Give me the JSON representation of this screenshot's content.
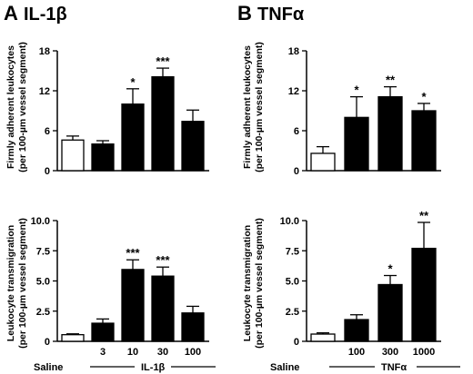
{
  "panels": [
    {
      "letter": "A",
      "title": "IL-1β",
      "group_label_left": "Saline",
      "group_label_right": "IL-1β",
      "categories": [
        "",
        "3",
        "10",
        "30",
        "100"
      ],
      "fills": [
        "#ffffff",
        "#000000",
        "#000000",
        "#000000",
        "#000000"
      ]
    },
    {
      "letter": "B",
      "title": "TNFα",
      "group_label_left": "Saline",
      "group_label_right": "TNFα",
      "categories": [
        "",
        "100",
        "300",
        "1000"
      ],
      "fills": [
        "#ffffff",
        "#000000",
        "#000000",
        "#000000"
      ]
    }
  ],
  "chart_data": [
    {
      "type": "bar",
      "panel": "A",
      "row": "top",
      "title": "IL-1β",
      "ylabel_line1": "Firmly adherent leukocytes",
      "ylabel_line2": "(per 100-µm vessel segment)",
      "categories": [
        "Saline",
        "3",
        "10",
        "30",
        "100"
      ],
      "values": [
        4.6,
        4.0,
        10.0,
        14.1,
        7.4
      ],
      "errors": [
        0.6,
        0.5,
        2.3,
        1.3,
        1.7
      ],
      "significance": [
        "",
        "",
        "*",
        "***",
        ""
      ],
      "ylim": [
        0,
        18
      ],
      "yticks": [
        0,
        6,
        12,
        18
      ]
    },
    {
      "type": "bar",
      "panel": "A",
      "row": "bottom",
      "ylabel_line1": "Leukocyte transmigration",
      "ylabel_line2": "(per 100-µm vessel segment)",
      "categories": [
        "Saline",
        "3",
        "10",
        "30",
        "100"
      ],
      "values": [
        0.55,
        1.5,
        5.95,
        5.4,
        2.35
      ],
      "errors": [
        0.07,
        0.35,
        0.8,
        0.75,
        0.55
      ],
      "significance": [
        "",
        "",
        "***",
        "***",
        ""
      ],
      "ylim": [
        0,
        10.0
      ],
      "yticks": [
        "0",
        "2.5",
        "5.0",
        "7.5",
        "10.0"
      ]
    },
    {
      "type": "bar",
      "panel": "B",
      "row": "top",
      "title": "TNFα",
      "ylabel_line1": "Firmly adherent leukocytes",
      "ylabel_line2": "(per 100-µm vessel segment)",
      "categories": [
        "Saline",
        "100",
        "300",
        "1000"
      ],
      "values": [
        2.6,
        8.0,
        11.1,
        9.0
      ],
      "errors": [
        1.0,
        3.1,
        1.5,
        1.1
      ],
      "significance": [
        "",
        "*",
        "**",
        "*"
      ],
      "ylim": [
        0,
        18
      ],
      "yticks": [
        0,
        6,
        12,
        18
      ]
    },
    {
      "type": "bar",
      "panel": "B",
      "row": "bottom",
      "ylabel_line1": "Leukocyte transmigration",
      "ylabel_line2": "(per 100-µm vessel segment)",
      "categories": [
        "Saline",
        "100",
        "300",
        "1000"
      ],
      "values": [
        0.6,
        1.8,
        4.7,
        7.7
      ],
      "errors": [
        0.1,
        0.4,
        0.75,
        2.15
      ],
      "significance": [
        "",
        "",
        "*",
        "**"
      ],
      "ylim": [
        0,
        10.0
      ],
      "yticks": [
        "0",
        "2.5",
        "5.0",
        "7.5",
        "10.0"
      ]
    }
  ]
}
